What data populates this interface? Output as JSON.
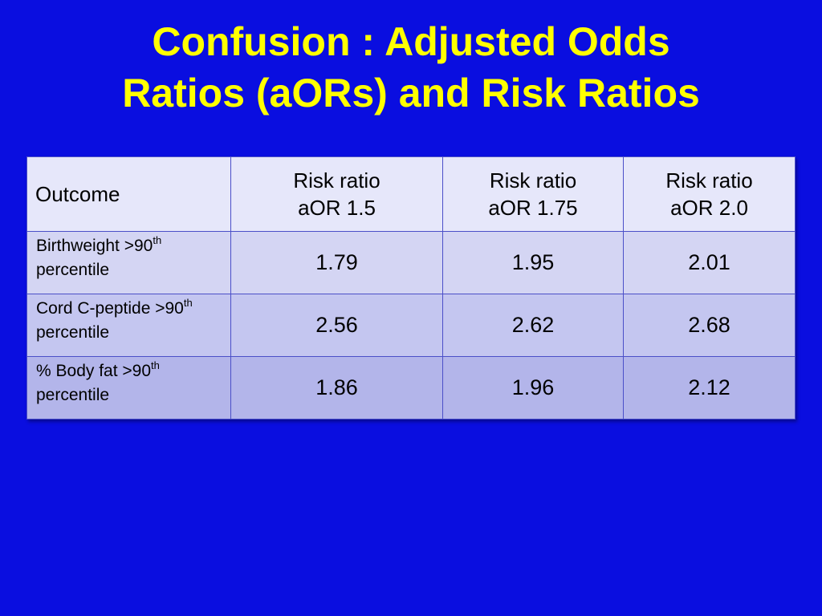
{
  "slide": {
    "title_line1": "Confusion : Adjusted Odds",
    "title_line2": "Ratios (aORs) and Risk Ratios",
    "title_color": "#ffff00",
    "background_color": "#0a0ee0"
  },
  "table": {
    "outcome_header": "Outcome",
    "columns": [
      {
        "line1": "Risk ratio",
        "line2": "aOR 1.5"
      },
      {
        "line1": "Risk ratio",
        "line2": "aOR 1.75"
      },
      {
        "line1": "Risk ratio",
        "line2": "aOR 2.0"
      }
    ],
    "rows": [
      {
        "label_pre": "Birthweight >90",
        "label_sup": "th",
        "label_post": "percentile",
        "values": [
          "1.79",
          "1.95",
          "2.01"
        ]
      },
      {
        "label_pre": "Cord C-peptide >90",
        "label_sup": "th",
        "label_post": "percentile",
        "values": [
          "2.56",
          "2.62",
          "2.68"
        ]
      },
      {
        "label_pre": "% Body fat >90",
        "label_sup": "th",
        "label_post": "percentile",
        "values": [
          "1.86",
          "1.96",
          "2.12"
        ]
      }
    ]
  }
}
